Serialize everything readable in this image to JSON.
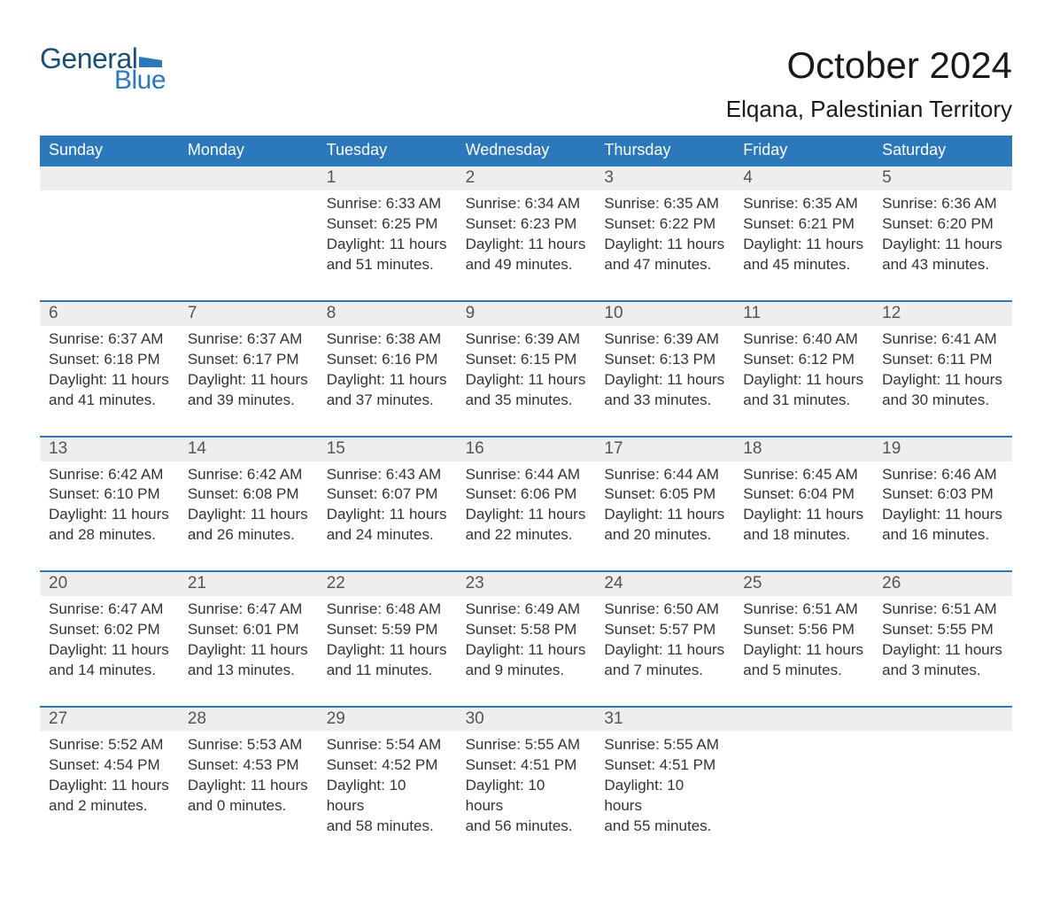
{
  "logo": {
    "general": "General",
    "blue": "Blue",
    "flag_color": "#2b78bc"
  },
  "title": "October 2024",
  "location": "Elqana, Palestinian Territory",
  "styling": {
    "header_bg": "#2b78bc",
    "header_text_color": "#ffffff",
    "daynum_bg": "#eeeeee",
    "week_border_color": "#2b78bc",
    "body_bg": "#ffffff",
    "text_color": "#333333",
    "title_fontsize": 42,
    "location_fontsize": 26,
    "dow_fontsize": 18,
    "daynum_fontsize": 19,
    "body_fontsize": 17,
    "columns": 7
  },
  "days_of_week": [
    "Sunday",
    "Monday",
    "Tuesday",
    "Wednesday",
    "Thursday",
    "Friday",
    "Saturday"
  ],
  "weeks": [
    [
      null,
      null,
      {
        "n": "1",
        "sr": "Sunrise: 6:33 AM",
        "ss": "Sunset: 6:25 PM",
        "d1": "Daylight: 11 hours",
        "d2": "and 51 minutes."
      },
      {
        "n": "2",
        "sr": "Sunrise: 6:34 AM",
        "ss": "Sunset: 6:23 PM",
        "d1": "Daylight: 11 hours",
        "d2": "and 49 minutes."
      },
      {
        "n": "3",
        "sr": "Sunrise: 6:35 AM",
        "ss": "Sunset: 6:22 PM",
        "d1": "Daylight: 11 hours",
        "d2": "and 47 minutes."
      },
      {
        "n": "4",
        "sr": "Sunrise: 6:35 AM",
        "ss": "Sunset: 6:21 PM",
        "d1": "Daylight: 11 hours",
        "d2": "and 45 minutes."
      },
      {
        "n": "5",
        "sr": "Sunrise: 6:36 AM",
        "ss": "Sunset: 6:20 PM",
        "d1": "Daylight: 11 hours",
        "d2": "and 43 minutes."
      }
    ],
    [
      {
        "n": "6",
        "sr": "Sunrise: 6:37 AM",
        "ss": "Sunset: 6:18 PM",
        "d1": "Daylight: 11 hours",
        "d2": "and 41 minutes."
      },
      {
        "n": "7",
        "sr": "Sunrise: 6:37 AM",
        "ss": "Sunset: 6:17 PM",
        "d1": "Daylight: 11 hours",
        "d2": "and 39 minutes."
      },
      {
        "n": "8",
        "sr": "Sunrise: 6:38 AM",
        "ss": "Sunset: 6:16 PM",
        "d1": "Daylight: 11 hours",
        "d2": "and 37 minutes."
      },
      {
        "n": "9",
        "sr": "Sunrise: 6:39 AM",
        "ss": "Sunset: 6:15 PM",
        "d1": "Daylight: 11 hours",
        "d2": "and 35 minutes."
      },
      {
        "n": "10",
        "sr": "Sunrise: 6:39 AM",
        "ss": "Sunset: 6:13 PM",
        "d1": "Daylight: 11 hours",
        "d2": "and 33 minutes."
      },
      {
        "n": "11",
        "sr": "Sunrise: 6:40 AM",
        "ss": "Sunset: 6:12 PM",
        "d1": "Daylight: 11 hours",
        "d2": "and 31 minutes."
      },
      {
        "n": "12",
        "sr": "Sunrise: 6:41 AM",
        "ss": "Sunset: 6:11 PM",
        "d1": "Daylight: 11 hours",
        "d2": "and 30 minutes."
      }
    ],
    [
      {
        "n": "13",
        "sr": "Sunrise: 6:42 AM",
        "ss": "Sunset: 6:10 PM",
        "d1": "Daylight: 11 hours",
        "d2": "and 28 minutes."
      },
      {
        "n": "14",
        "sr": "Sunrise: 6:42 AM",
        "ss": "Sunset: 6:08 PM",
        "d1": "Daylight: 11 hours",
        "d2": "and 26 minutes."
      },
      {
        "n": "15",
        "sr": "Sunrise: 6:43 AM",
        "ss": "Sunset: 6:07 PM",
        "d1": "Daylight: 11 hours",
        "d2": "and 24 minutes."
      },
      {
        "n": "16",
        "sr": "Sunrise: 6:44 AM",
        "ss": "Sunset: 6:06 PM",
        "d1": "Daylight: 11 hours",
        "d2": "and 22 minutes."
      },
      {
        "n": "17",
        "sr": "Sunrise: 6:44 AM",
        "ss": "Sunset: 6:05 PM",
        "d1": "Daylight: 11 hours",
        "d2": "and 20 minutes."
      },
      {
        "n": "18",
        "sr": "Sunrise: 6:45 AM",
        "ss": "Sunset: 6:04 PM",
        "d1": "Daylight: 11 hours",
        "d2": "and 18 minutes."
      },
      {
        "n": "19",
        "sr": "Sunrise: 6:46 AM",
        "ss": "Sunset: 6:03 PM",
        "d1": "Daylight: 11 hours",
        "d2": "and 16 minutes."
      }
    ],
    [
      {
        "n": "20",
        "sr": "Sunrise: 6:47 AM",
        "ss": "Sunset: 6:02 PM",
        "d1": "Daylight: 11 hours",
        "d2": "and 14 minutes."
      },
      {
        "n": "21",
        "sr": "Sunrise: 6:47 AM",
        "ss": "Sunset: 6:01 PM",
        "d1": "Daylight: 11 hours",
        "d2": "and 13 minutes."
      },
      {
        "n": "22",
        "sr": "Sunrise: 6:48 AM",
        "ss": "Sunset: 5:59 PM",
        "d1": "Daylight: 11 hours",
        "d2": "and 11 minutes."
      },
      {
        "n": "23",
        "sr": "Sunrise: 6:49 AM",
        "ss": "Sunset: 5:58 PM",
        "d1": "Daylight: 11 hours",
        "d2": "and 9 minutes."
      },
      {
        "n": "24",
        "sr": "Sunrise: 6:50 AM",
        "ss": "Sunset: 5:57 PM",
        "d1": "Daylight: 11 hours",
        "d2": "and 7 minutes."
      },
      {
        "n": "25",
        "sr": "Sunrise: 6:51 AM",
        "ss": "Sunset: 5:56 PM",
        "d1": "Daylight: 11 hours",
        "d2": "and 5 minutes."
      },
      {
        "n": "26",
        "sr": "Sunrise: 6:51 AM",
        "ss": "Sunset: 5:55 PM",
        "d1": "Daylight: 11 hours",
        "d2": "and 3 minutes."
      }
    ],
    [
      {
        "n": "27",
        "sr": "Sunrise: 5:52 AM",
        "ss": "Sunset: 4:54 PM",
        "d1": "Daylight: 11 hours",
        "d2": "and 2 minutes."
      },
      {
        "n": "28",
        "sr": "Sunrise: 5:53 AM",
        "ss": "Sunset: 4:53 PM",
        "d1": "Daylight: 11 hours",
        "d2": "and 0 minutes."
      },
      {
        "n": "29",
        "sr": "Sunrise: 5:54 AM",
        "ss": "Sunset: 4:52 PM",
        "d1": "Daylight: 10 hours",
        "d2": "and 58 minutes."
      },
      {
        "n": "30",
        "sr": "Sunrise: 5:55 AM",
        "ss": "Sunset: 4:51 PM",
        "d1": "Daylight: 10 hours",
        "d2": "and 56 minutes."
      },
      {
        "n": "31",
        "sr": "Sunrise: 5:55 AM",
        "ss": "Sunset: 4:51 PM",
        "d1": "Daylight: 10 hours",
        "d2": "and 55 minutes."
      },
      null,
      null
    ]
  ]
}
